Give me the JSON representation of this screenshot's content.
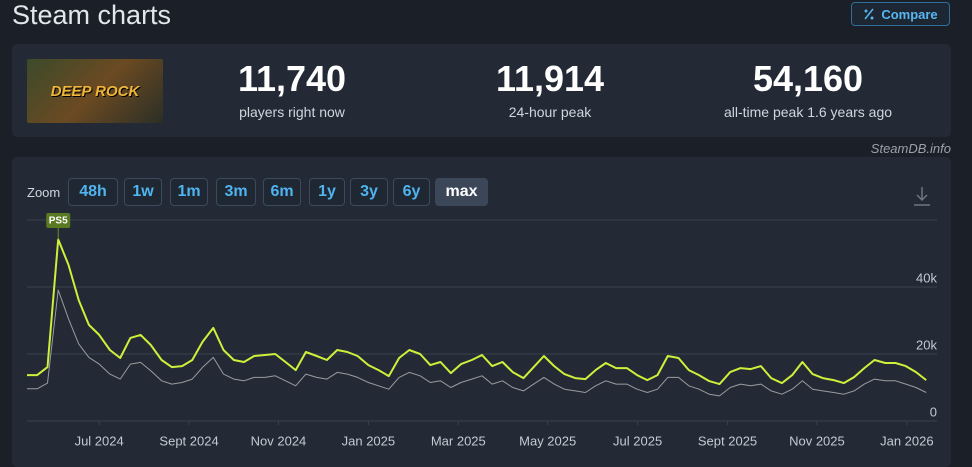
{
  "header": {
    "title": "Steam charts",
    "compare": "Compare"
  },
  "game": {
    "image_text": "DEEP ROCK"
  },
  "stats": [
    {
      "value": "11,740",
      "label": "players right now"
    },
    {
      "value": "11,914",
      "label": "24-hour peak"
    },
    {
      "value": "54,160",
      "label": "all-time peak 1.6 years ago"
    }
  ],
  "source": "SteamDB.info",
  "zoom": {
    "label": "Zoom",
    "options": [
      "48h",
      "1w",
      "1m",
      "3m",
      "6m",
      "1y",
      "3y",
      "6y",
      "max"
    ],
    "selected": "max"
  },
  "chart_data": {
    "type": "line",
    "annotation": "PS5",
    "grid": true,
    "xlim": [
      2024.366,
      2026.056
    ],
    "ylim": [
      0,
      60000
    ],
    "yticks": [
      {
        "value": 0,
        "label": "0"
      },
      {
        "value": 20000,
        "label": "20k"
      },
      {
        "value": 40000,
        "label": "40k"
      }
    ],
    "xticks": [
      {
        "value": 2024.5,
        "label": "Jul 2024"
      },
      {
        "value": 2024.667,
        "label": "Sept 2024"
      },
      {
        "value": 2024.833,
        "label": "Nov 2024"
      },
      {
        "value": 2025.0,
        "label": "Jan 2025"
      },
      {
        "value": 2025.167,
        "label": "Mar 2025"
      },
      {
        "value": 2025.333,
        "label": "May 2025"
      },
      {
        "value": 2025.5,
        "label": "Jul 2025"
      },
      {
        "value": 2025.667,
        "label": "Sept 2025"
      },
      {
        "value": 2025.833,
        "label": "Nov 2025"
      },
      {
        "value": 2026.0,
        "label": "Jan 2026"
      }
    ],
    "x": [
      2024.366,
      2024.385,
      2024.404,
      2024.424,
      2024.443,
      2024.462,
      2024.481,
      2024.5,
      2024.52,
      2024.539,
      2024.558,
      2024.577,
      2024.596,
      2024.616,
      2024.635,
      2024.654,
      2024.673,
      2024.692,
      2024.712,
      2024.731,
      2024.75,
      2024.769,
      2024.788,
      2024.808,
      2024.827,
      2024.846,
      2024.865,
      2024.884,
      2024.904,
      2024.923,
      2024.942,
      2024.961,
      2024.98,
      2025.0,
      2025.019,
      2025.038,
      2025.057,
      2025.076,
      2025.096,
      2025.115,
      2025.134,
      2025.153,
      2025.172,
      2025.192,
      2025.211,
      2025.23,
      2025.249,
      2025.268,
      2025.288,
      2025.307,
      2025.326,
      2025.345,
      2025.364,
      2025.384,
      2025.403,
      2025.422,
      2025.441,
      2025.46,
      2025.48,
      2025.499,
      2025.518,
      2025.537,
      2025.556,
      2025.576,
      2025.595,
      2025.614,
      2025.633,
      2025.652,
      2025.672,
      2025.691,
      2025.71,
      2025.729,
      2025.748,
      2025.768,
      2025.787,
      2025.806,
      2025.825,
      2025.844,
      2025.864,
      2025.883,
      2025.902,
      2025.921,
      2025.94,
      2025.96,
      2025.979,
      2025.998,
      2026.017,
      2026.036
    ],
    "series": [
      {
        "color": "#9a9c9e",
        "values": [
          9600,
          9600,
          11300,
          39100,
          30500,
          23000,
          19000,
          17000,
          14000,
          12500,
          17000,
          17500,
          15000,
          12000,
          11000,
          11500,
          12500,
          16000,
          19000,
          14000,
          12500,
          12000,
          13000,
          13000,
          13500,
          12000,
          10500,
          14000,
          13000,
          12500,
          14500,
          14000,
          13000,
          11500,
          10500,
          9500,
          13000,
          14500,
          13500,
          11500,
          12000,
          10000,
          11500,
          12500,
          13500,
          11000,
          12000,
          10000,
          9000,
          11000,
          13000,
          11000,
          9500,
          9000,
          8500,
          10500,
          12000,
          11000,
          11000,
          9500,
          8500,
          9500,
          13000,
          13000,
          10500,
          9500,
          8000,
          7500,
          10000,
          11000,
          10500,
          11000,
          9000,
          8000,
          9500,
          12000,
          9500,
          9000,
          8500,
          8000,
          9000,
          11000,
          12500,
          12000,
          12000,
          11000,
          10000,
          8500
        ]
      },
      {
        "color": "#cdf03a",
        "values": [
          13700,
          13700,
          16100,
          54200,
          46600,
          36100,
          28700,
          25700,
          21200,
          18800,
          24800,
          25700,
          22700,
          18200,
          16100,
          16400,
          18200,
          23600,
          27800,
          21200,
          18200,
          17600,
          19400,
          19700,
          20000,
          17600,
          15200,
          20600,
          19400,
          18200,
          21200,
          20600,
          19400,
          16700,
          15200,
          13400,
          18800,
          21200,
          20000,
          16700,
          17600,
          14300,
          17000,
          18200,
          19700,
          16400,
          17600,
          14600,
          12800,
          16100,
          19400,
          16400,
          14000,
          12800,
          12500,
          15200,
          17300,
          15800,
          15800,
          13700,
          12200,
          13700,
          19400,
          18800,
          15200,
          13700,
          11900,
          11000,
          14600,
          15800,
          15500,
          16400,
          12800,
          11300,
          13700,
          17600,
          14000,
          12800,
          12200,
          11300,
          13100,
          15800,
          18200,
          17300,
          17300,
          16400,
          14600,
          12200
        ]
      }
    ]
  }
}
